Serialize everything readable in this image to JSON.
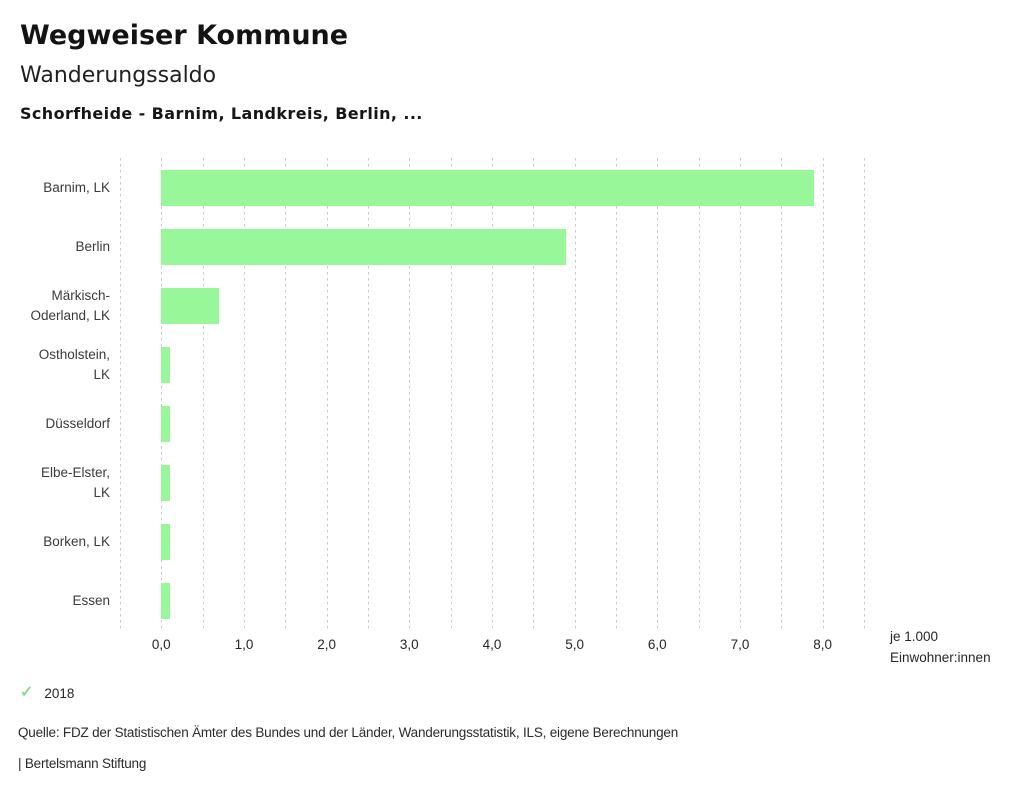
{
  "header": {
    "title": "Wegweiser Kommune",
    "subtitle": "Wanderungssaldo",
    "selection": "Schorfheide - Barnim, Landkreis, Berlin, ..."
  },
  "chart_data": {
    "type": "bar",
    "orientation": "horizontal",
    "title": "Wanderungssaldo",
    "categories": [
      "Barnim, LK",
      "Berlin",
      "Märkisch-Oderland, LK",
      "Ostholstein, LK",
      "Düsseldorf",
      "Elbe-Elster, LK",
      "Borken, LK",
      "Essen"
    ],
    "category_lines": [
      [
        "Barnim, LK"
      ],
      [
        "Berlin"
      ],
      [
        "Märkisch-",
        "Oderland, LK"
      ],
      [
        "Ostholstein,",
        "LK"
      ],
      [
        "Düsseldorf"
      ],
      [
        "Elbe-Elster,",
        "LK"
      ],
      [
        "Borken, LK"
      ],
      [
        "Essen"
      ]
    ],
    "series": [
      {
        "name": "2018",
        "values": [
          7.9,
          4.9,
          0.7,
          0.1,
          0.1,
          0.1,
          0.1,
          0.1
        ]
      }
    ],
    "values": [
      7.9,
      4.9,
      0.7,
      0.1,
      0.1,
      0.1,
      0.1,
      0.1
    ],
    "xlim": [
      -0.5,
      8.5
    ],
    "minor_step": 0.5,
    "grid": true,
    "x_major_ticks": [
      0,
      1,
      2,
      3,
      4,
      5,
      6,
      7,
      8
    ],
    "x_tick_labels": [
      "0,0",
      "1,0",
      "2,0",
      "3,0",
      "4,0",
      "5,0",
      "6,0",
      "7,0",
      "8,0"
    ],
    "unit_label_lines": [
      "je 1.000",
      "Einwohner:innen"
    ],
    "bar_color": "#98f798",
    "gridline_color": "#c8c8c8",
    "legend_position": "bottom-left"
  },
  "legend": {
    "check_icon": "check-icon",
    "check_color": "#8cdc8c",
    "year": "2018"
  },
  "footer": {
    "source": "Quelle: FDZ der Statistischen Ämter des Bundes und der Länder, Wanderungsstatistik, ILS, eigene Berechnungen",
    "brand": "| Bertelsmann Stiftung"
  }
}
